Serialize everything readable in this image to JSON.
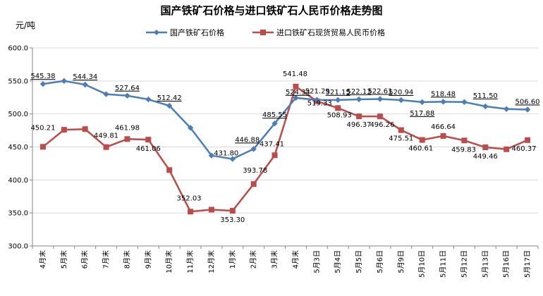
{
  "chart_data": {
    "type": "line",
    "title": "国产铁矿石价格与进口铁矿石人民币价格走势图",
    "unit_label": "元/吨",
    "ylim": [
      300,
      600
    ],
    "yticks": [
      "300.0",
      "350.0",
      "400.0",
      "450.0",
      "500.0",
      "550.0",
      "600.0"
    ],
    "grid": true,
    "legend_position": "top-center",
    "categories": [
      "4月末",
      "5月末",
      "6月末",
      "7月末",
      "8月末",
      "9月末",
      "10月末",
      "11月末",
      "12月末",
      "1月末",
      "2月末",
      "3月末",
      "4月末",
      "5月3日",
      "5月4日",
      "5月5日",
      "5月6日",
      "5月9日",
      "5月10日",
      "5月11日",
      "5月12日",
      "5月13日",
      "5月16日",
      "5月17日"
    ],
    "series": [
      {
        "name": "国产铁矿石价格",
        "color": "#4a7ebb",
        "marker": "diamond",
        "values": [
          545.38,
          550.0,
          544.34,
          530.0,
          527.64,
          522.0,
          512.42,
          479.0,
          437.0,
          431.8,
          446.88,
          485.55,
          524.34,
          521.29,
          521.15,
          522.13,
          522.61,
          520.94,
          517.88,
          518.48,
          518.0,
          511.5,
          507.5,
          506.6
        ],
        "labels": [
          "545.38",
          "",
          "544.34",
          "",
          "527.64",
          "",
          "512.42",
          "",
          "",
          "431.80",
          "446.88",
          "485.55",
          "524.34",
          "521.29",
          "521.15",
          "522.13",
          "522.61",
          "520.94",
          "517.88",
          "518.48",
          "",
          "511.50",
          "",
          "506.60"
        ]
      },
      {
        "name": "进口铁矿石现货贸易人民币价格",
        "color": "#be4b48",
        "marker": "square",
        "values": [
          450.21,
          476.0,
          477.0,
          449.81,
          461.98,
          461.06,
          415.0,
          352.03,
          355.0,
          353.3,
          393.78,
          437.41,
          541.48,
          519.33,
          508.93,
          496.37,
          496.26,
          475.51,
          460.61,
          466.64,
          459.83,
          449.46,
          446.5,
          460.37
        ],
        "labels": [
          "450.21",
          "",
          "",
          "449.81",
          "461.98",
          "461.06",
          "",
          "352.03",
          "",
          "353.30",
          "393.78",
          "437.41",
          "541.48",
          "519.33",
          "508.93",
          "496.37",
          "496.26",
          "475.51",
          "460.61",
          "466.64",
          "459.83",
          "449.46",
          "",
          "460.37"
        ]
      }
    ]
  }
}
